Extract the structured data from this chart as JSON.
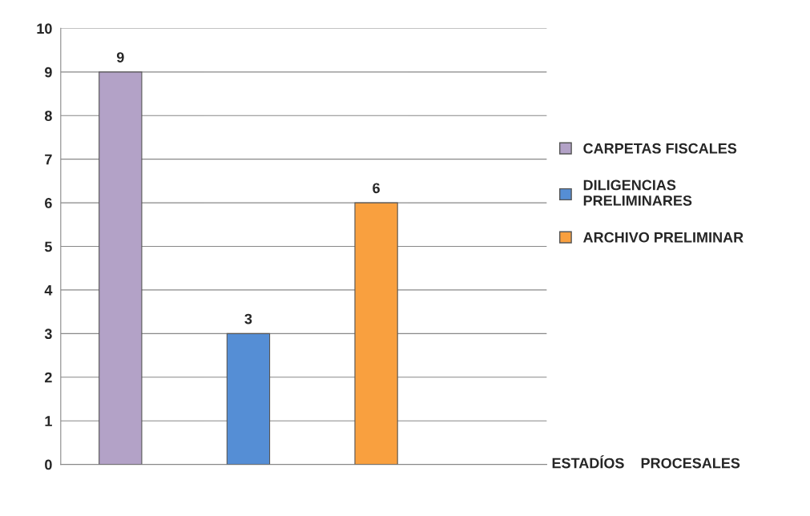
{
  "chart_data": {
    "type": "bar",
    "categories": [
      null
    ],
    "xlabel": "ESTADÍOS    PROCESALES",
    "series": [
      {
        "name": "CARPETAS FISCALES",
        "color": "#b3a2c7",
        "values": [
          9
        ]
      },
      {
        "name": "DILIGENCIAS PRELIMINARES",
        "color": "#558ed5",
        "values": [
          3
        ]
      },
      {
        "name": "ARCHIVO PRELIMINAR",
        "color": "#f9a03f",
        "values": [
          6
        ]
      }
    ],
    "ylim": [
      0,
      10
    ],
    "yticks": [
      0,
      1,
      2,
      3,
      4,
      5,
      6,
      7,
      8,
      9,
      10
    ],
    "grid": "y",
    "legend": "right",
    "data_labels": true
  }
}
